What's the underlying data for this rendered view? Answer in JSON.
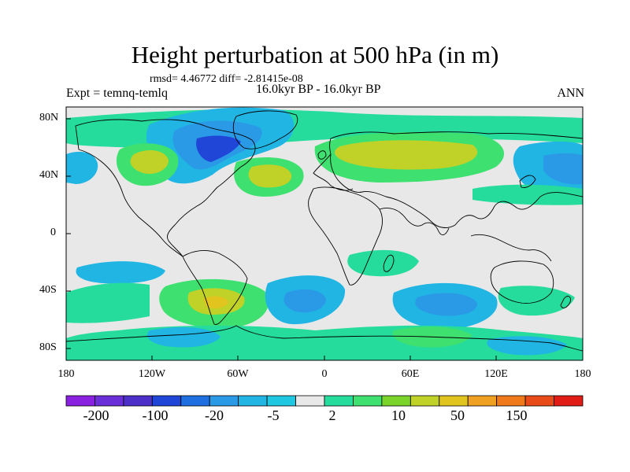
{
  "header": {
    "title": "Height perturbation at 500 hPa (in m)",
    "stats": "rmsd= 4.46772 diff= -2.81415e-08",
    "expt": "Expt = temnq-temlq",
    "period": "16.0kyr BP - 16.0kyr BP",
    "season": "ANN"
  },
  "axes": {
    "x_ticks": [
      "180",
      "120W",
      "60W",
      "0",
      "60E",
      "120E",
      "180"
    ],
    "y_ticks": [
      "80N",
      "40N",
      "0",
      "40S",
      "80S"
    ]
  },
  "colorbar": {
    "colors": [
      "#8b21e0",
      "#6a2fd6",
      "#4d30c8",
      "#2046d8",
      "#1f6fe0",
      "#2a9ae6",
      "#21b5e4",
      "#1fc7e0",
      "#e8e8e8",
      "#25dc9c",
      "#3ee070",
      "#7ad42a",
      "#c0d227",
      "#e2c41f",
      "#f0a020",
      "#f07a1a",
      "#e84a18",
      "#e01c14"
    ],
    "labels": [
      "-200",
      "-100",
      "-20",
      "-5",
      "2",
      "10",
      "50",
      "150"
    ]
  },
  "colors": {
    "background": "#e8e8e8",
    "coast": "#000000"
  }
}
